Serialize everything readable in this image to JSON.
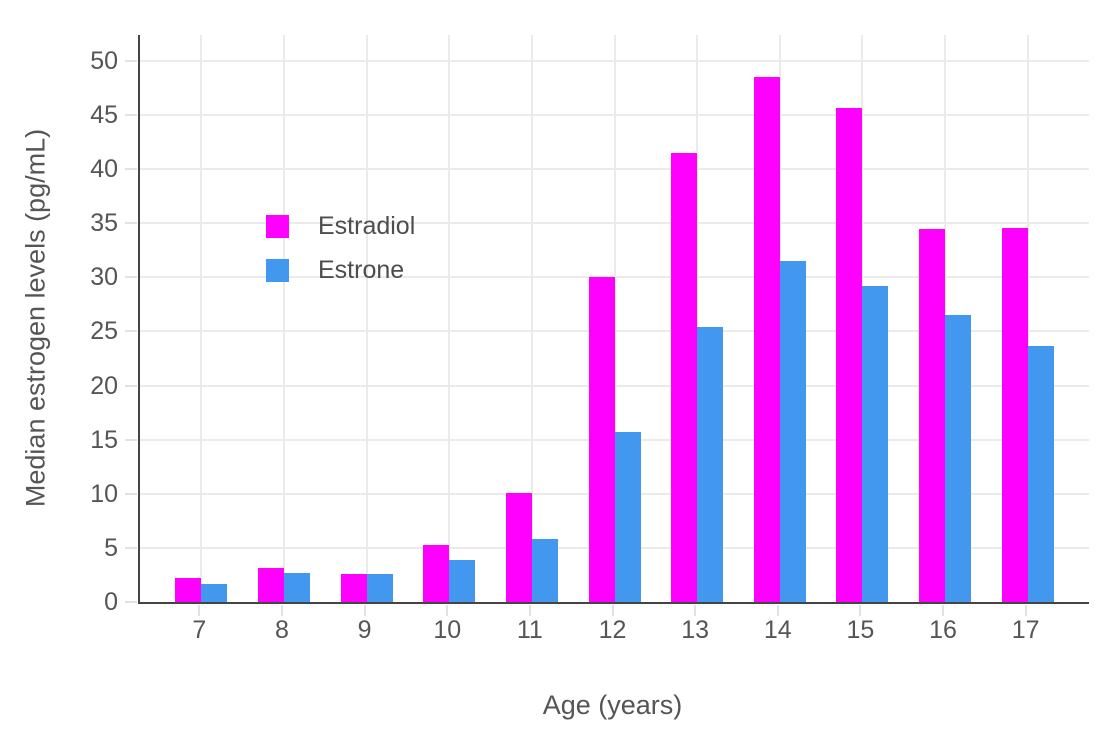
{
  "chart_data": {
    "type": "bar",
    "title": "",
    "xlabel": "Age (years)",
    "ylabel": "Median estrogen levels (pg/mL)",
    "categories": [
      "7",
      "8",
      "9",
      "10",
      "11",
      "12",
      "13",
      "14",
      "15",
      "16",
      "17"
    ],
    "series": [
      {
        "name": "Estradiol",
        "color": "#FF00FF",
        "values": [
          2.2,
          3.1,
          2.6,
          5.3,
          10.1,
          30.0,
          41.5,
          48.5,
          45.7,
          34.5,
          34.6
        ]
      },
      {
        "name": "Estrone",
        "color": "#4298EE",
        "values": [
          1.7,
          2.7,
          2.6,
          3.9,
          5.8,
          15.7,
          25.4,
          31.5,
          29.2,
          26.5,
          23.7
        ]
      }
    ],
    "ylim": [
      0,
      52.4
    ],
    "yticks": [
      0,
      5,
      10,
      15,
      20,
      25,
      30,
      35,
      40,
      45,
      50
    ],
    "grid": true,
    "legend_position": "inside-top-left"
  },
  "styles": {
    "background": "#ffffff",
    "grid_color": "#ebebeb",
    "axis_line_color": "#444444",
    "tick_mark_color": "#e2e2e2",
    "tick_label_color": "#555555",
    "axis_title_color": "#555555",
    "legend_text_color": "#4d4d4d"
  }
}
